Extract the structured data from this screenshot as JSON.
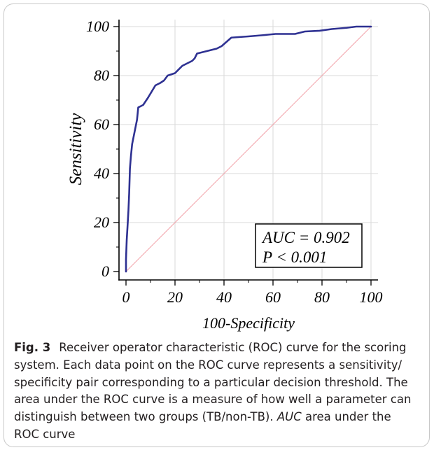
{
  "figure": {
    "border_color": "#c8c8c8"
  },
  "chart_data": {
    "type": "line",
    "xlabel": "100-Specificity",
    "ylabel": "Sensitivity",
    "xlim": [
      0,
      100
    ],
    "ylim": [
      0,
      100
    ],
    "xticks": [
      0,
      20,
      40,
      60,
      80,
      100
    ],
    "yticks": [
      0,
      20,
      40,
      60,
      80,
      100
    ],
    "grid": true,
    "grid_color": "#d9d9d9",
    "series": [
      {
        "x": [
          0,
          0,
          0.3,
          0.6,
          1,
          1.3,
          1.6,
          2,
          2.5,
          3.5,
          4.5,
          5,
          7,
          9,
          12,
          14,
          15.5,
          17,
          20,
          23,
          27,
          28,
          29,
          33,
          37,
          39,
          43,
          50,
          56,
          61,
          69,
          73,
          79,
          84,
          90,
          94,
          100
        ],
        "y": [
          0,
          5,
          13,
          18,
          25,
          32,
          42,
          47,
          52,
          57,
          62,
          67,
          68,
          71,
          76,
          77,
          78,
          80,
          81,
          84,
          86,
          87,
          89,
          90,
          91,
          92,
          95.5,
          96,
          96.5,
          97,
          97,
          98,
          98.3,
          99,
          99.5,
          100,
          100
        ],
        "color": "#2e3192"
      }
    ],
    "reference_line": {
      "x": [
        0,
        100
      ],
      "y": [
        0,
        100
      ],
      "color": "#f2a3aa"
    },
    "annotation": {
      "lines": [
        "AUC = 0.902",
        "P < 0.001"
      ],
      "position": "bottom-right"
    }
  },
  "caption": {
    "label": "Fig. 3",
    "line_1": "Receiver operator characteristic (ROC) curve for the scoring",
    "line_2": "system. Each data point on the ROC curve represents a sensitivity/",
    "line_3": "specificity pair corresponding to a particular decision threshold. The",
    "line_4": "area under the ROC curve is a measure of how well a parameter can",
    "line_5": "distinguish between two groups (TB/non-TB).",
    "abbreviation": "AUC",
    "line_5_end": "area under the",
    "line_6": "ROC curve"
  }
}
